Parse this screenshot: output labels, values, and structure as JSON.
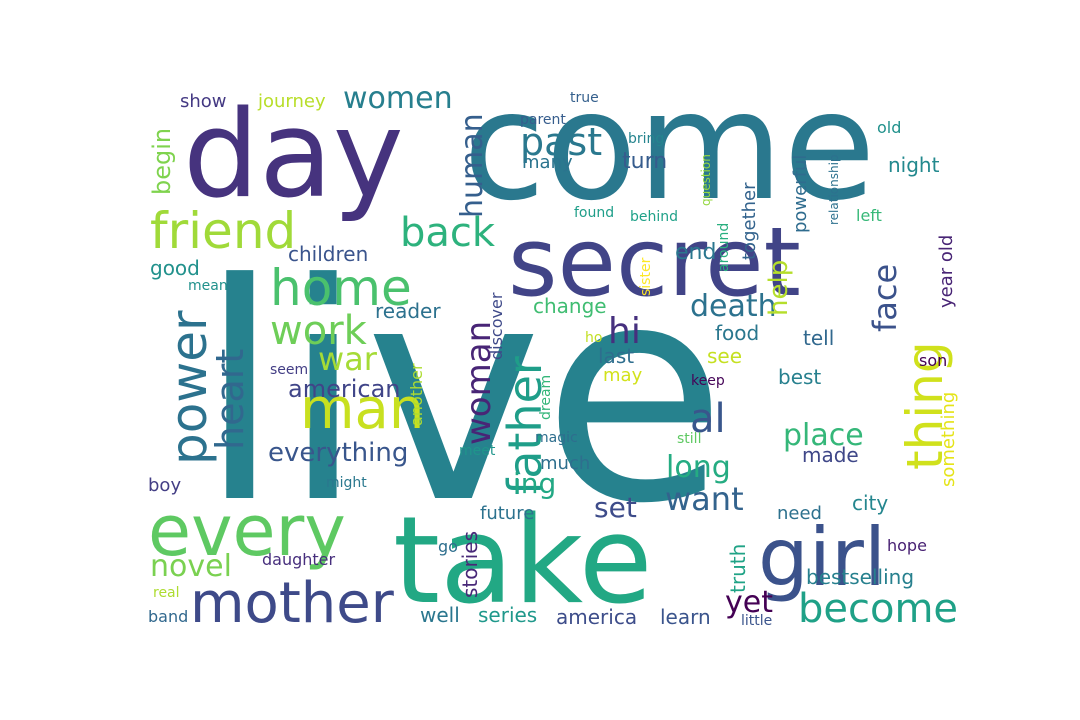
{
  "word_cloud": {
    "words": [
      {
        "text": "live",
        "color": "#26828e"
      },
      {
        "text": "come",
        "color": "#2a788e"
      },
      {
        "text": "take",
        "color": "#22a884"
      },
      {
        "text": "day",
        "color": "#46337e"
      },
      {
        "text": "secret",
        "color": "#414487"
      },
      {
        "text": "every",
        "color": "#5ec962"
      },
      {
        "text": "girl",
        "color": "#3b528b"
      },
      {
        "text": "mother",
        "color": "#3e4a89"
      },
      {
        "text": "friend",
        "color": "#a0da39"
      },
      {
        "text": "home",
        "color": "#4ac16d"
      },
      {
        "text": "man",
        "color": "#c8e020"
      },
      {
        "text": "power",
        "color": "#2c728e"
      },
      {
        "text": "thing",
        "color": "#d0e11c"
      },
      {
        "text": "become",
        "color": "#1fa187"
      },
      {
        "text": "father",
        "color": "#1f9e89"
      },
      {
        "text": "work",
        "color": "#6ece58"
      },
      {
        "text": "heart",
        "color": "#31688e"
      },
      {
        "text": "woman",
        "color": "#482576"
      },
      {
        "text": "back",
        "color": "#2db27d"
      },
      {
        "text": "face",
        "color": "#3b528b"
      },
      {
        "text": "past",
        "color": "#2a788e"
      },
      {
        "text": "war",
        "color": "#a5db36"
      },
      {
        "text": "women",
        "color": "#277f8e"
      },
      {
        "text": "human",
        "color": "#355f8d"
      },
      {
        "text": "place",
        "color": "#35b779"
      },
      {
        "text": "want",
        "color": "#33638d"
      },
      {
        "text": "death",
        "color": "#2c728e"
      },
      {
        "text": "hi",
        "color": "#46307e"
      },
      {
        "text": "al",
        "color": "#39568c"
      },
      {
        "text": "long",
        "color": "#25ac82"
      },
      {
        "text": "help",
        "color": "#b5de2b"
      },
      {
        "text": "everything",
        "color": "#39568c"
      },
      {
        "text": "novel",
        "color": "#7ad151"
      },
      {
        "text": "ing",
        "color": "#22a884"
      },
      {
        "text": "yet",
        "color": "#440154"
      },
      {
        "text": "set",
        "color": "#3e4c8a"
      },
      {
        "text": "american",
        "color": "#404588"
      },
      {
        "text": "begin",
        "color": "#7fd34e"
      },
      {
        "text": "stories",
        "color": "#482878"
      },
      {
        "text": "bestselling",
        "color": "#27808e"
      },
      {
        "text": "city",
        "color": "#24868e"
      },
      {
        "text": "something",
        "color": "#e5e419"
      },
      {
        "text": "year old",
        "color": "#482475"
      },
      {
        "text": "powerful",
        "color": "#2f6c8e"
      },
      {
        "text": "together",
        "color": "#33638d"
      },
      {
        "text": "journey",
        "color": "#b8de29"
      },
      {
        "text": "show",
        "color": "#443983"
      },
      {
        "text": "many",
        "color": "#2b748e"
      },
      {
        "text": "turn",
        "color": "#365c8d"
      },
      {
        "text": "night",
        "color": "#23898e"
      },
      {
        "text": "end",
        "color": "#2a768e"
      },
      {
        "text": "food",
        "color": "#2a778e"
      },
      {
        "text": "tell",
        "color": "#31688e"
      },
      {
        "text": "change",
        "color": "#40bd72"
      },
      {
        "text": "reader",
        "color": "#2c718e"
      },
      {
        "text": "children",
        "color": "#3a548c"
      },
      {
        "text": "good",
        "color": "#21918c"
      },
      {
        "text": "last",
        "color": "#2e6e8e"
      },
      {
        "text": "may",
        "color": "#d2e21b"
      },
      {
        "text": "see",
        "color": "#c5e021"
      },
      {
        "text": "best",
        "color": "#27808e"
      },
      {
        "text": "made",
        "color": "#3f4788"
      },
      {
        "text": "much",
        "color": "#2e6f8e"
      },
      {
        "text": "truth",
        "color": "#20a386"
      },
      {
        "text": "need",
        "color": "#2d718e"
      },
      {
        "text": "hope",
        "color": "#482173"
      },
      {
        "text": "future",
        "color": "#2c728e"
      },
      {
        "text": "well",
        "color": "#2a768e"
      },
      {
        "text": "series",
        "color": "#1f988b"
      },
      {
        "text": "america",
        "color": "#3d4d8a"
      },
      {
        "text": "learn",
        "color": "#3a548c"
      },
      {
        "text": "boy",
        "color": "#433e85"
      },
      {
        "text": "daughter",
        "color": "#472f7d"
      },
      {
        "text": "discover",
        "color": "#3e4989"
      },
      {
        "text": "another",
        "color": "#addc30"
      },
      {
        "text": "dream",
        "color": "#34b679"
      },
      {
        "text": "sister",
        "color": "#fde725"
      },
      {
        "text": "question",
        "color": "#95d840"
      },
      {
        "text": "around",
        "color": "#29af7f"
      },
      {
        "text": "relationship",
        "color": "#2d718e"
      },
      {
        "text": "old",
        "color": "#21918c"
      },
      {
        "text": "left",
        "color": "#37b878"
      },
      {
        "text": "son",
        "color": "#440154"
      },
      {
        "text": "keep",
        "color": "#450457"
      },
      {
        "text": "still",
        "color": "#5ec962"
      },
      {
        "text": "magic",
        "color": "#2e6e8e"
      },
      {
        "text": "meet",
        "color": "#1f958b"
      },
      {
        "text": "might",
        "color": "#2a788e"
      },
      {
        "text": "seem",
        "color": "#433e85"
      },
      {
        "text": "mean",
        "color": "#21918c"
      },
      {
        "text": "real",
        "color": "#addc30"
      },
      {
        "text": "band",
        "color": "#31688e"
      },
      {
        "text": "go",
        "color": "#2e6f8e"
      },
      {
        "text": "little",
        "color": "#3a548c"
      },
      {
        "text": "ho",
        "color": "#c2df23"
      },
      {
        "text": "true",
        "color": "#35608d"
      },
      {
        "text": "parent",
        "color": "#365d8d"
      },
      {
        "text": "bring",
        "color": "#25848e"
      },
      {
        "text": "found",
        "color": "#1f9e89"
      },
      {
        "text": "behind",
        "color": "#1fa188"
      }
    ]
  }
}
